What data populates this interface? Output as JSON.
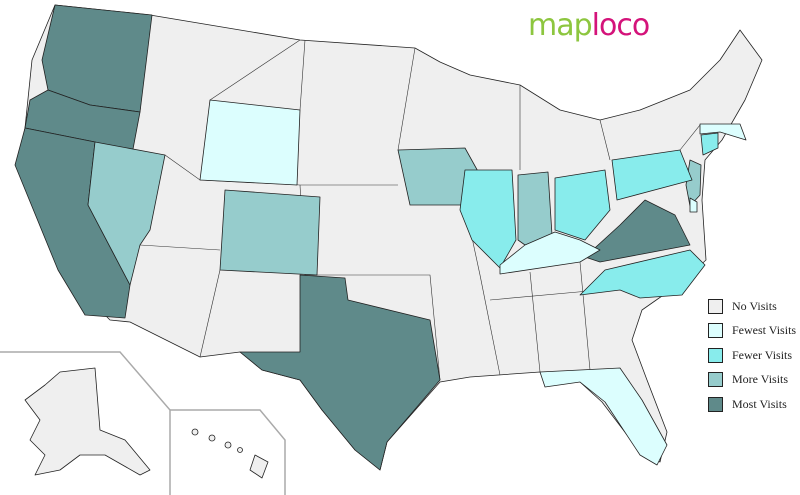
{
  "logo": {
    "part1": "map",
    "part2": "loco"
  },
  "legend": [
    {
      "label": "No Visits",
      "color": "#efefef"
    },
    {
      "label": "Fewest Visits",
      "color": "#dcfefe"
    },
    {
      "label": "Fewer Visits",
      "color": "#88ecec"
    },
    {
      "label": "More Visits",
      "color": "#96cccc"
    },
    {
      "label": "Most Visits",
      "color": "#5f8a8a"
    }
  ],
  "states": {
    "Washington": "Most Visits",
    "Oregon": "Most Visits",
    "California": "Most Visits",
    "Texas": "Most Visits",
    "Virginia": "Most Visits",
    "Nevada": "More Visits",
    "Colorado": "More Visits",
    "Iowa": "More Visits",
    "Indiana": "More Visits",
    "New Jersey": "More Visits",
    "Illinois": "Fewer Visits",
    "Ohio": "Fewer Visits",
    "Pennsylvania": "Fewer Visits",
    "North Carolina": "Fewer Visits",
    "Connecticut": "Fewer Visits",
    "Wyoming": "Fewest Visits",
    "Kentucky": "Fewest Visits",
    "Florida": "Fewest Visits",
    "Massachusetts": "Fewest Visits",
    "Delaware": "Fewest Visits"
  }
}
